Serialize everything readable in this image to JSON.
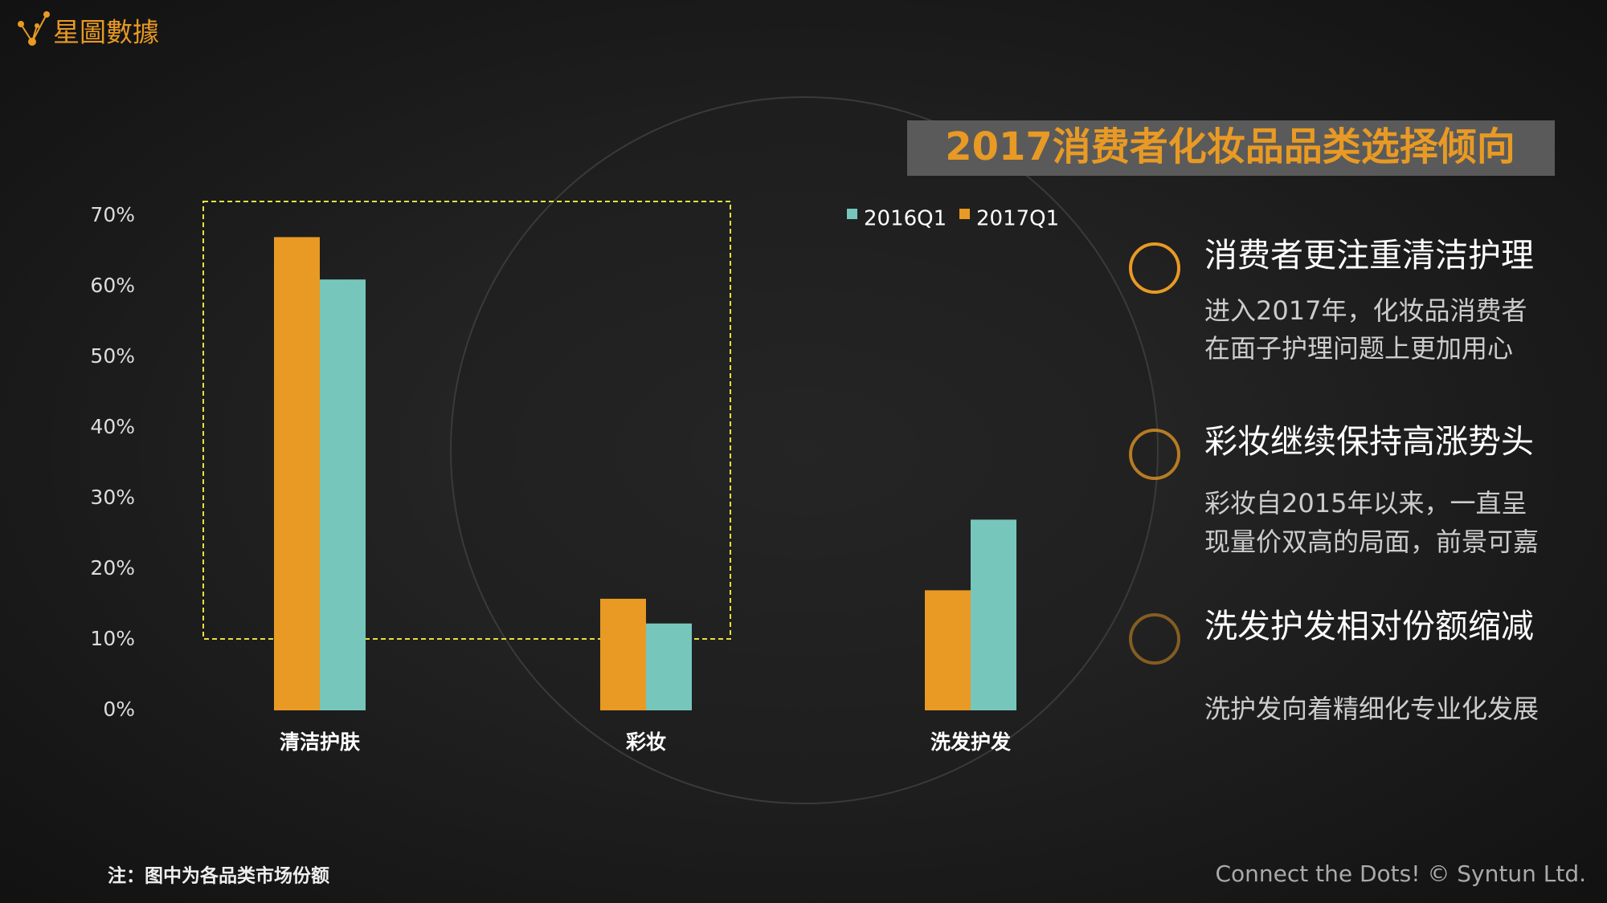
{
  "brand": "星圖數據",
  "chart_data": {
    "type": "bar",
    "title": "2017消费者化妆品品类选择倾向",
    "categories": [
      "清洁护肤",
      "彩妆",
      "洗发护发"
    ],
    "series": [
      {
        "name": "2016Q1",
        "color": "#76c6bb",
        "values": [
          61,
          12.3,
          27
        ]
      },
      {
        "name": "2017Q1",
        "color": "#e89a24",
        "values": [
          67,
          15.8,
          17
        ]
      }
    ],
    "ylim": [
      0,
      70
    ],
    "yticks": [
      {
        "value": 0,
        "label": "0%"
      },
      {
        "value": 10,
        "label": "10%"
      },
      {
        "value": 20,
        "label": "20%"
      },
      {
        "value": 30,
        "label": "30%"
      },
      {
        "value": 40,
        "label": "40%"
      },
      {
        "value": 50,
        "label": "50%"
      },
      {
        "value": 60,
        "label": "60%"
      },
      {
        "value": 70,
        "label": "70%"
      }
    ]
  },
  "points": [
    {
      "heading": "消费者更注重清洁护理",
      "lines": [
        "进入2017年，化妆品消费者",
        "在面子护理问题上更加用心"
      ]
    },
    {
      "heading": "彩妆继续保持高涨势头",
      "lines": [
        "彩妆自2015年以来，一直呈",
        "现量价双高的局面，前景可嘉"
      ]
    },
    {
      "heading": "洗发护发相对份额缩减",
      "lines": [
        "洗护发向着精细化专业化发展"
      ]
    }
  ],
  "note": "注：图中为各品类市场份额",
  "credit": "Connect the Dots! © Syntun Ltd."
}
